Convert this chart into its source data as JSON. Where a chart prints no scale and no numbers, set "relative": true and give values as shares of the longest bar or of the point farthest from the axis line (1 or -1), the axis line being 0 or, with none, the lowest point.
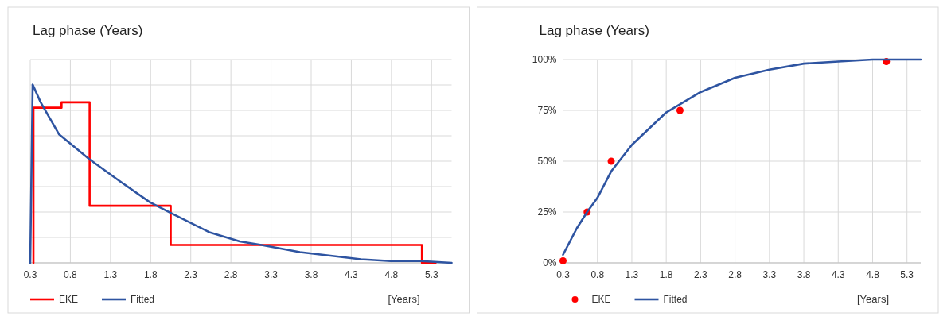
{
  "chart_data": [
    {
      "type": "line",
      "title": "Lag phase (Years)",
      "xlabel": "[Years]",
      "relative": true,
      "xlim": [
        0.3,
        5.55
      ],
      "xticks": [
        0.3,
        0.8,
        1.3,
        1.8,
        2.3,
        2.8,
        3.3,
        3.8,
        4.3,
        4.8,
        5.3
      ],
      "grid": true,
      "legend": "bottom left",
      "series": [
        {
          "name": "EKE",
          "color": "#ff0000",
          "x": [
            0.34,
            0.34,
            0.69,
            0.69,
            1.04,
            1.04,
            2.05,
            2.05,
            5.18,
            5.18,
            5.35
          ],
          "values": [
            0,
            0.87,
            0.87,
            0.9,
            0.9,
            0.32,
            0.32,
            0.1,
            0.1,
            0,
            0
          ]
        },
        {
          "name": "Fitted",
          "color": "#2e54a1",
          "x": [
            0.3,
            0.33,
            0.43,
            0.66,
            1.04,
            1.41,
            1.79,
            2.05,
            2.54,
            2.91,
            3.18,
            3.66,
            4.04,
            4.42,
            4.79,
            5.17,
            5.55
          ],
          "values": [
            0,
            1,
            0.9,
            0.72,
            0.58,
            0.46,
            0.34,
            0.28,
            0.17,
            0.12,
            0.1,
            0.06,
            0.04,
            0.02,
            0.01,
            0.01,
            0
          ]
        }
      ]
    },
    {
      "type": "line",
      "title": "Lag phase (Years)",
      "xlabel": "[Years]",
      "xlim": [
        0.3,
        5.5
      ],
      "xticks": [
        0.3,
        0.8,
        1.3,
        1.8,
        2.3,
        2.8,
        3.3,
        3.8,
        4.3,
        4.8,
        5.3
      ],
      "ylim": [
        0,
        100
      ],
      "yticks": [
        {
          "value": 0,
          "label": "0%"
        },
        {
          "value": 25,
          "label": "25%"
        },
        {
          "value": 50,
          "label": "50%"
        },
        {
          "value": 75,
          "label": "75%"
        },
        {
          "value": 100,
          "label": "100%"
        }
      ],
      "grid": true,
      "legend": "bottom left",
      "series": [
        {
          "name": "EKE",
          "type": "scatter",
          "color": "#ff0000",
          "x": [
            0.3,
            0.65,
            1.0,
            2.0,
            5.0
          ],
          "values": [
            1,
            25,
            50,
            75,
            99
          ]
        },
        {
          "name": "Fitted",
          "color": "#2e54a1",
          "x": [
            0.3,
            0.5,
            0.65,
            0.8,
            1.0,
            1.3,
            1.8,
            2.3,
            2.8,
            3.3,
            3.8,
            4.3,
            4.8,
            5.5
          ],
          "values": [
            4,
            17,
            25,
            32,
            45,
            58,
            74,
            84,
            91,
            95,
            98,
            99,
            100,
            100
          ]
        }
      ]
    }
  ]
}
